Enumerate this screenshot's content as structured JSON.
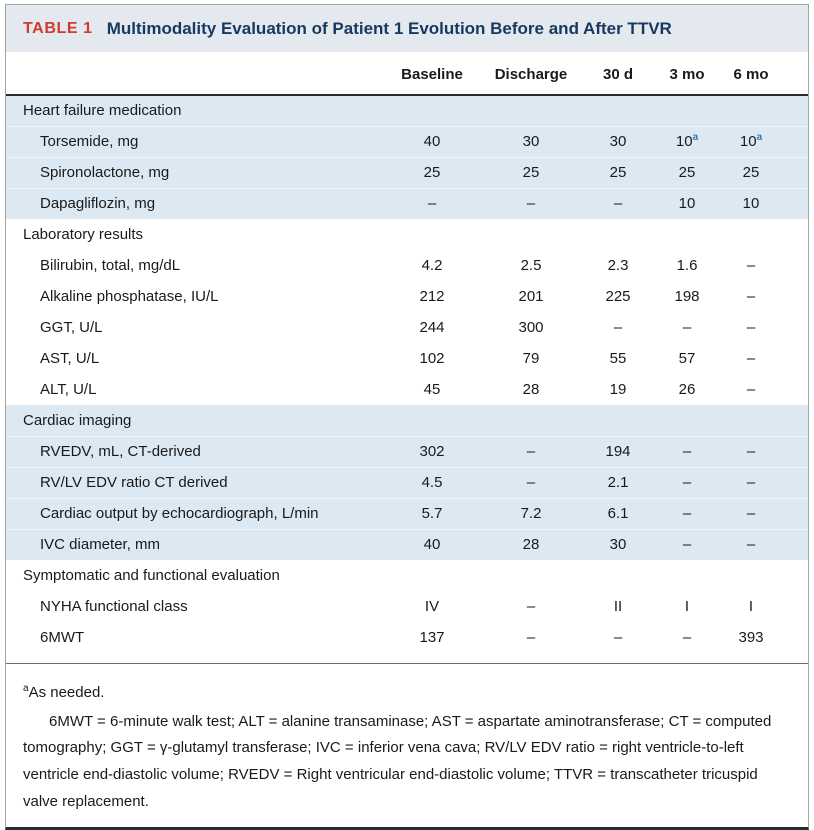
{
  "colors": {
    "tag_red": "#cf3a32",
    "title_navy": "#17395f",
    "band_blue": "#dce8f2",
    "header_band": "#e3e9ee",
    "superscript_blue": "#2b7bb9"
  },
  "table": {
    "tag": "TABLE 1",
    "title": "Multimodality Evaluation of Patient 1 Evolution Before and After TTVR",
    "columns": [
      "Baseline",
      "Discharge",
      "30 d",
      "3 mo",
      "6 mo"
    ],
    "sections": [
      {
        "label": "Heart failure medication",
        "shaded": true,
        "rows": [
          {
            "label": "Torsemide, mg",
            "values": [
              "40",
              "30",
              "30",
              "10",
              "10"
            ],
            "sup": [
              null,
              null,
              null,
              "a",
              "a"
            ]
          },
          {
            "label": "Spironolactone, mg",
            "values": [
              "25",
              "25",
              "25",
              "25",
              "25"
            ]
          },
          {
            "label": "Dapagliflozin, mg",
            "values": [
              "–",
              "–",
              "–",
              "10",
              "10"
            ]
          }
        ]
      },
      {
        "label": "Laboratory results",
        "shaded": false,
        "rows": [
          {
            "label": "Bilirubin, total, mg/dL",
            "values": [
              "4.2",
              "2.5",
              "2.3",
              "1.6",
              "–"
            ]
          },
          {
            "label": "Alkaline phosphatase, IU/L",
            "values": [
              "212",
              "201",
              "225",
              "198",
              "–"
            ]
          },
          {
            "label": "GGT, U/L",
            "values": [
              "244",
              "300",
              "–",
              "–",
              "–"
            ]
          },
          {
            "label": "AST, U/L",
            "values": [
              "102",
              "79",
              "55",
              "57",
              "–"
            ]
          },
          {
            "label": "ALT, U/L",
            "values": [
              "45",
              "28",
              "19",
              "26",
              "–"
            ]
          }
        ]
      },
      {
        "label": "Cardiac imaging",
        "shaded": true,
        "rows": [
          {
            "label": "RVEDV, mL, CT-derived",
            "values": [
              "302",
              "–",
              "194",
              "–",
              "–"
            ]
          },
          {
            "label": "RV/LV EDV ratio CT derived",
            "values": [
              "4.5",
              "–",
              "2.1",
              "–",
              "–"
            ]
          },
          {
            "label": "Cardiac output by echocardiograph, L/min",
            "values": [
              "5.7",
              "7.2",
              "6.1",
              "–",
              "–"
            ]
          },
          {
            "label": "IVC diameter, mm",
            "values": [
              "40",
              "28",
              "30",
              "–",
              "–"
            ]
          }
        ]
      },
      {
        "label": "Symptomatic and functional evaluation",
        "shaded": false,
        "rows": [
          {
            "label": "NYHA functional class",
            "values": [
              "IV",
              "–",
              "II",
              "I",
              "I"
            ]
          },
          {
            "label": "6MWT",
            "values": [
              "137",
              "–",
              "–",
              "–",
              "393"
            ]
          }
        ]
      }
    ],
    "footnote": {
      "sup": "a",
      "text": "As needed."
    },
    "abbreviations": "6MWT = 6-minute walk test; ALT = alanine transaminase; AST = aspartate aminotransferase; CT = computed tomography; GGT = γ-glutamyl transferase; IVC = inferior vena cava; RV/LV EDV ratio = right ventricle-to-left ventricle end-diastolic volume; RVEDV = Right ventricular end-diastolic volume; TTVR = transcatheter tricuspid valve replacement."
  }
}
